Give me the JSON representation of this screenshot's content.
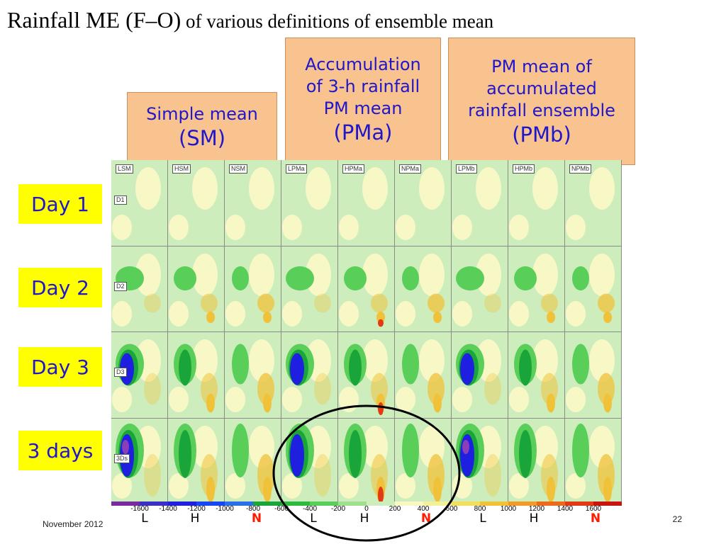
{
  "title": {
    "main": "Rainfall ME (F–O)",
    "sub": " of various definitions of ensemble mean"
  },
  "headers": [
    {
      "lines": [
        "Simple mean"
      ],
      "abbr": "(SM)"
    },
    {
      "lines": [
        "Accumulation",
        "of 3-h rainfall",
        "PM mean"
      ],
      "abbr": "(PMa)"
    },
    {
      "lines": [
        "PM mean of",
        "accumulated",
        "rainfall ensemble"
      ],
      "abbr": "(PMb)"
    }
  ],
  "rows": [
    {
      "label": "Day 1",
      "tag": "D1"
    },
    {
      "label": "Day 2",
      "tag": "D2"
    },
    {
      "label": "Day 3",
      "tag": "D3"
    },
    {
      "label": "3 days",
      "tag": "3Ds"
    }
  ],
  "panel_labels": [
    "LSM",
    "HSM",
    "NSM",
    "LPMa",
    "HPMa",
    "NPMa",
    "LPMb",
    "HPMb",
    "NPMb"
  ],
  "colorbar": {
    "colors": [
      "#7a2aa0",
      "#3b2fc6",
      "#1f1fe0",
      "#1846f0",
      "#2a6ee8",
      "#1aa53a",
      "#2dbb3f",
      "#59cf5a",
      "#9ee08d",
      "#cdeebc",
      "#f8f8c6",
      "#f4f09a",
      "#f2de5a",
      "#f0c23a",
      "#f09a2a",
      "#ec6a1c",
      "#e23a14",
      "#c8140e"
    ],
    "tick_labels": [
      "-1600",
      "-1400",
      "-1200",
      "-1000",
      "-800",
      "-600",
      "-400",
      "-200",
      "0",
      "200",
      "400",
      "600",
      "800",
      "1000",
      "1200",
      "1400",
      "1600"
    ]
  },
  "resolution_marks": [
    "L",
    "H",
    "N",
    "L",
    "H",
    "N",
    "L",
    "H",
    "N"
  ],
  "footer": {
    "date": "November 2012",
    "page": "22"
  },
  "panel_field_colors": {
    "lightgreen": "#cdeebc",
    "yellow": "#f8f8c6",
    "green": "#59cf5a",
    "darkgreen": "#1aa53a",
    "blue": "#1f1fe0",
    "purple": "#8a3fb8",
    "orange": "#f0c23a",
    "red": "#e23a14"
  }
}
